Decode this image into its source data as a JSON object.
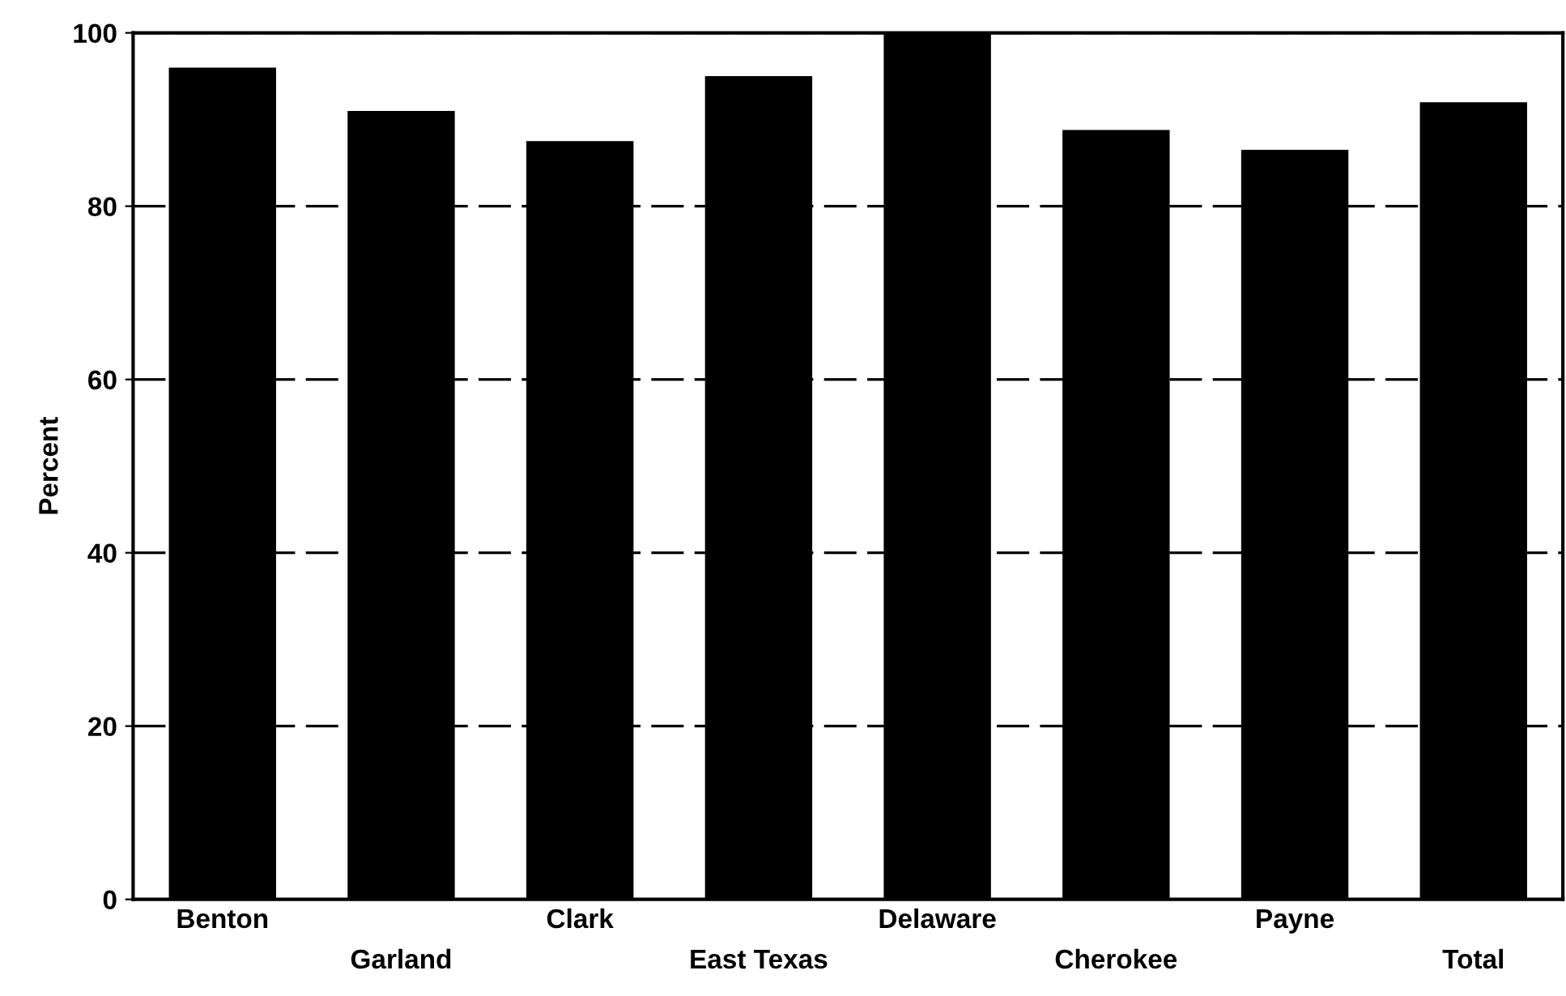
{
  "chart_data": {
    "type": "bar",
    "ylabel": "Percent",
    "categories": [
      "Benton",
      "Garland",
      "Clark",
      "East Texas",
      "Delaware",
      "Cherokee",
      "Payne",
      "Total"
    ],
    "values": [
      96,
      91,
      87.5,
      95,
      100,
      88.8,
      86.5,
      92
    ],
    "color": "#000000",
    "ylim": [
      0,
      100
    ],
    "yticks": [
      0,
      20,
      40,
      60,
      80,
      100
    ],
    "grid": "y",
    "line_style": "dashed"
  }
}
